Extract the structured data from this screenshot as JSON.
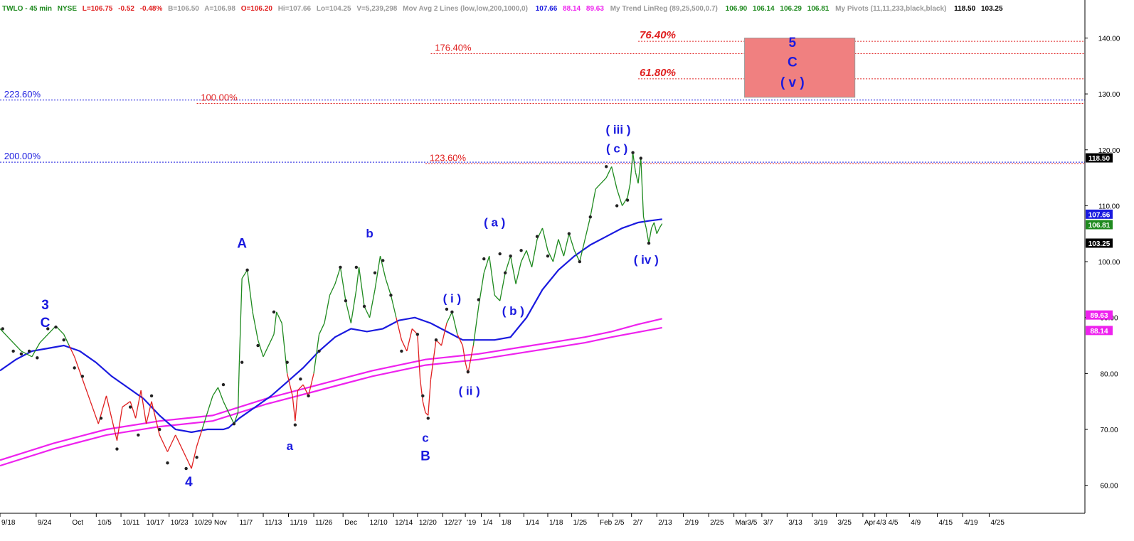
{
  "header": {
    "symbol": "TWLO - 45 min",
    "exchange": "NYSE",
    "last": "L=106.75",
    "chg": "-0.52",
    "chg_pct": "-0.48%",
    "bid": "B=106.50",
    "ask": "A=106.98",
    "open": "O=106.20",
    "hi": "Hi=107.66",
    "lo": "Lo=104.25",
    "vol": "V=5,239,298",
    "ma_label": "Mov Avg 2 Lines (low,low,200,1000,0)",
    "ma_v1": "107.66",
    "ma_v2": "88.14",
    "ma_v3": "89.63",
    "trend_label": "My  Trend  LinReg (89,25,500,0.7)",
    "trend_v1": "106.90",
    "trend_v2": "106.14",
    "trend_v3": "106.29",
    "trend_v4": "106.81",
    "pivots_label": "My  Pivots (11,11,233,black,black)",
    "pivots_v1": "118.50",
    "pivots_v2": "103.25"
  },
  "colors": {
    "up": "#1f8a1f",
    "down": "#e02020",
    "ma_blue": "#1a1adf",
    "ma_magenta": "#ee22ee",
    "fib_red": "#e02020",
    "fib_blue": "#1a1adf",
    "target_box": "#f08080",
    "pivot_dot": "#222222"
  },
  "chart_data": {
    "type": "line",
    "y_axis": {
      "min": 55,
      "max": 144,
      "ticks": [
        60,
        70,
        80,
        90,
        100,
        110,
        120,
        130,
        140
      ],
      "tick_labels": [
        "60.00",
        "70.00",
        "80.00",
        "90.00",
        "100.00",
        "110.00",
        "120.00",
        "130.00",
        "140.00"
      ]
    },
    "x_axis": {
      "tick_labels": [
        "9/18",
        "9/24",
        "Oct",
        "10/5",
        "10/11",
        "10/17",
        "10/23",
        "10/29",
        "Nov",
        "11/7",
        "11/13",
        "11/19",
        "11/26",
        "Dec",
        "12/10",
        "12/14",
        "12/20",
        "12/27",
        "'19",
        "1/4",
        "1/8",
        "1/14",
        "1/18",
        "1/25",
        "Feb",
        "2/5",
        "2/7",
        "2/13",
        "2/19",
        "2/25",
        "Mar",
        "3/5",
        "3/7",
        "3/13",
        "3/19",
        "3/25",
        "Apr",
        "4/3",
        "4/5",
        "4/9",
        "4/15",
        "4/19",
        "4/25"
      ],
      "tick_idx": [
        0,
        13.6,
        26.6,
        36.2,
        45.5,
        54.5,
        63.6,
        72.5,
        80,
        89.5,
        99,
        108.5,
        118,
        129,
        138.5,
        148,
        157,
        166.5,
        175,
        181,
        188,
        197,
        206,
        215,
        225,
        230.5,
        237.5,
        247,
        257,
        266.5,
        276,
        280.5,
        286.5,
        296,
        305.5,
        314.5,
        324.5,
        329,
        333.5,
        342,
        352.5,
        362,
        372
      ],
      "idx_max": 408
    },
    "price": [
      [
        0,
        88
      ],
      [
        4,
        86
      ],
      [
        8,
        84
      ],
      [
        12,
        83
      ],
      [
        15,
        85.5
      ],
      [
        18,
        87
      ],
      [
        21,
        88.5
      ],
      [
        24,
        87
      ],
      [
        26,
        85
      ],
      [
        28,
        83
      ],
      [
        31,
        79
      ],
      [
        34,
        75
      ],
      [
        37,
        71
      ],
      [
        40,
        76
      ],
      [
        42,
        72
      ],
      [
        44,
        68
      ],
      [
        46,
        74
      ],
      [
        49,
        75
      ],
      [
        51,
        72
      ],
      [
        53,
        77
      ],
      [
        55,
        71
      ],
      [
        57,
        75
      ],
      [
        60,
        69
      ],
      [
        63,
        66
      ],
      [
        66,
        69
      ],
      [
        70,
        65
      ],
      [
        72,
        63
      ],
      [
        74,
        67
      ],
      [
        76,
        70
      ],
      [
        78,
        73
      ],
      [
        80,
        76
      ],
      [
        82,
        77.5
      ],
      [
        84,
        75
      ],
      [
        86,
        73
      ],
      [
        88,
        71
      ],
      [
        89.5,
        73
      ],
      [
        90,
        82
      ],
      [
        91,
        97
      ],
      [
        93,
        98.5
      ],
      [
        95,
        91
      ],
      [
        97,
        86
      ],
      [
        99,
        83
      ],
      [
        101,
        85
      ],
      [
        103,
        87
      ],
      [
        104,
        91
      ],
      [
        106,
        89
      ],
      [
        108,
        80
      ],
      [
        110,
        76
      ],
      [
        111,
        71.5
      ],
      [
        112,
        77
      ],
      [
        114,
        78
      ],
      [
        116,
        76
      ],
      [
        118,
        80
      ],
      [
        120,
        87
      ],
      [
        122,
        89
      ],
      [
        124,
        94
      ],
      [
        126,
        96
      ],
      [
        128,
        99
      ],
      [
        130,
        93
      ],
      [
        132,
        89
      ],
      [
        134,
        95
      ],
      [
        135,
        99
      ],
      [
        137,
        92
      ],
      [
        139,
        90
      ],
      [
        141,
        95
      ],
      [
        143,
        101
      ],
      [
        145,
        97
      ],
      [
        147,
        94
      ],
      [
        149,
        90
      ],
      [
        151,
        86
      ],
      [
        153,
        84
      ],
      [
        155,
        88
      ],
      [
        157,
        87
      ],
      [
        158,
        79
      ],
      [
        159,
        75
      ],
      [
        160,
        73
      ],
      [
        161,
        72.5
      ],
      [
        162,
        79
      ],
      [
        164,
        86
      ],
      [
        166,
        85
      ],
      [
        168,
        89
      ],
      [
        170,
        91
      ],
      [
        172,
        87
      ],
      [
        174,
        85
      ],
      [
        175,
        82
      ],
      [
        176,
        80
      ],
      [
        178,
        85
      ],
      [
        180,
        92
      ],
      [
        182,
        98
      ],
      [
        184,
        101
      ],
      [
        186,
        94
      ],
      [
        188,
        93
      ],
      [
        190,
        98
      ],
      [
        192,
        101
      ],
      [
        194,
        96
      ],
      [
        196,
        100
      ],
      [
        198,
        102
      ],
      [
        200,
        99
      ],
      [
        202,
        104
      ],
      [
        204,
        106
      ],
      [
        206,
        102
      ],
      [
        208,
        100
      ],
      [
        210,
        104
      ],
      [
        212,
        101
      ],
      [
        214,
        105
      ],
      [
        216,
        102
      ],
      [
        218,
        100
      ],
      [
        220,
        104
      ],
      [
        222,
        108
      ],
      [
        224,
        113
      ],
      [
        226,
        114
      ],
      [
        228,
        115
      ],
      [
        230,
        117
      ],
      [
        232,
        113
      ],
      [
        234,
        110
      ],
      [
        236,
        111.5
      ],
      [
        237,
        114
      ],
      [
        238,
        119.5
      ],
      [
        239,
        116
      ],
      [
        240,
        114
      ],
      [
        241,
        118.5
      ],
      [
        242,
        108
      ],
      [
        243,
        106
      ],
      [
        244,
        103.3
      ],
      [
        245,
        106
      ],
      [
        246,
        107
      ],
      [
        247,
        105
      ],
      [
        248,
        106
      ],
      [
        249,
        106.8
      ]
    ],
    "ma_blue": [
      [
        0,
        80.5
      ],
      [
        6,
        82.5
      ],
      [
        12,
        84
      ],
      [
        18,
        84.5
      ],
      [
        24,
        85
      ],
      [
        30,
        84
      ],
      [
        36,
        82
      ],
      [
        42,
        79.5
      ],
      [
        48,
        77.5
      ],
      [
        54,
        75.5
      ],
      [
        60,
        72.5
      ],
      [
        66,
        70
      ],
      [
        72,
        69.5
      ],
      [
        78,
        70
      ],
      [
        84,
        70
      ],
      [
        86,
        70.3
      ],
      [
        90,
        72
      ],
      [
        96,
        74
      ],
      [
        102,
        76
      ],
      [
        108,
        78.5
      ],
      [
        114,
        81
      ],
      [
        120,
        84
      ],
      [
        126,
        86.5
      ],
      [
        132,
        88
      ],
      [
        138,
        87.5
      ],
      [
        144,
        88
      ],
      [
        150,
        89.5
      ],
      [
        156,
        90
      ],
      [
        162,
        89
      ],
      [
        168,
        87.5
      ],
      [
        174,
        86
      ],
      [
        180,
        86
      ],
      [
        186,
        86
      ],
      [
        192,
        86.5
      ],
      [
        198,
        90
      ],
      [
        204,
        95
      ],
      [
        210,
        98.5
      ],
      [
        216,
        101
      ],
      [
        222,
        103
      ],
      [
        228,
        104.5
      ],
      [
        234,
        106
      ],
      [
        240,
        107
      ],
      [
        244,
        107.3
      ],
      [
        249,
        107.6
      ]
    ],
    "ma_magenta": [
      [
        0,
        64.5
      ],
      [
        20,
        67.5
      ],
      [
        40,
        70
      ],
      [
        60,
        71.5
      ],
      [
        80,
        72.5
      ],
      [
        100,
        75.5
      ],
      [
        120,
        78
      ],
      [
        140,
        80.5
      ],
      [
        150,
        81.5
      ],
      [
        160,
        82.5
      ],
      [
        180,
        83.5
      ],
      [
        200,
        85
      ],
      [
        220,
        86.5
      ],
      [
        230,
        87.5
      ],
      [
        240,
        88.8
      ],
      [
        249,
        89.8
      ]
    ],
    "ma_magenta_2": [
      [
        0,
        63.5
      ],
      [
        20,
        66.5
      ],
      [
        40,
        69
      ],
      [
        60,
        70.5
      ],
      [
        80,
        71.5
      ],
      [
        100,
        74.5
      ],
      [
        120,
        77
      ],
      [
        140,
        79.5
      ],
      [
        150,
        80.5
      ],
      [
        160,
        81.5
      ],
      [
        180,
        82.5
      ],
      [
        200,
        84
      ],
      [
        220,
        85.5
      ],
      [
        230,
        86.5
      ],
      [
        240,
        87.4
      ],
      [
        249,
        88.2
      ]
    ],
    "pivots": [
      [
        1,
        88
      ],
      [
        5,
        84
      ],
      [
        8,
        83.5
      ],
      [
        11,
        84
      ],
      [
        14,
        82.8
      ],
      [
        18,
        88
      ],
      [
        21,
        88.3
      ],
      [
        24,
        86
      ],
      [
        28,
        81
      ],
      [
        31,
        79.5
      ],
      [
        38,
        72
      ],
      [
        44,
        66.5
      ],
      [
        49,
        74
      ],
      [
        52,
        69
      ],
      [
        57,
        76
      ],
      [
        60,
        70
      ],
      [
        63,
        64
      ],
      [
        70,
        63
      ],
      [
        74,
        65
      ],
      [
        84,
        78
      ],
      [
        88,
        71
      ],
      [
        91,
        82
      ],
      [
        93,
        98.5
      ],
      [
        97,
        85
      ],
      [
        103,
        91
      ],
      [
        108,
        82
      ],
      [
        111,
        70.8
      ],
      [
        113,
        79
      ],
      [
        116,
        76
      ],
      [
        120,
        84
      ],
      [
        128,
        99
      ],
      [
        130,
        93
      ],
      [
        134,
        99
      ],
      [
        137,
        92
      ],
      [
        141,
        98
      ],
      [
        144,
        100.2
      ],
      [
        147,
        94
      ],
      [
        151,
        84
      ],
      [
        157,
        87
      ],
      [
        159,
        76
      ],
      [
        161,
        72
      ],
      [
        164,
        86
      ],
      [
        168,
        91.5
      ],
      [
        170,
        91
      ],
      [
        176,
        80.3
      ],
      [
        180,
        93.2
      ],
      [
        182,
        100.5
      ],
      [
        188,
        101.4
      ],
      [
        190,
        98
      ],
      [
        192,
        101
      ],
      [
        196,
        102
      ],
      [
        202,
        104.5
      ],
      [
        206,
        101
      ],
      [
        214,
        105
      ],
      [
        218,
        100
      ],
      [
        222,
        108
      ],
      [
        228,
        117
      ],
      [
        232,
        110
      ],
      [
        236,
        111
      ],
      [
        238,
        119.5
      ],
      [
        241,
        118.5
      ],
      [
        244,
        103.3
      ]
    ],
    "fib_lines": [
      {
        "label": "76.40%",
        "price": 139.4,
        "x_start": 240,
        "style": "red-bold",
        "label_x": 240
      },
      {
        "label": "176.40%",
        "price": 137.2,
        "x_start": 162,
        "style": "red",
        "label_x": 163
      },
      {
        "label": "61.80%",
        "price": 132.7,
        "x_start": 240,
        "style": "red-bold",
        "label_x": 240
      },
      {
        "label": "223.60%",
        "price": 128.9,
        "x_start": 0,
        "style": "blue",
        "label_x": 1
      },
      {
        "label": "100.00%",
        "price": 128.3,
        "x_start": 74,
        "style": "red",
        "label_x": 75
      },
      {
        "label": "200.00%",
        "price": 117.8,
        "x_start": 0,
        "style": "blue",
        "label_x": 1
      },
      {
        "label": "123.60%",
        "price": 117.5,
        "x_start": 160,
        "style": "red",
        "label_x": 161
      }
    ],
    "target_box": {
      "x1": 280,
      "x2": 321.5,
      "price_top": 140,
      "price_bottom": 129.4
    },
    "wave_labels": [
      {
        "text": "3",
        "idx": 17,
        "price": 91.5,
        "size": "lg"
      },
      {
        "text": "C",
        "idx": 17,
        "price": 88.3,
        "size": "lg"
      },
      {
        "text": "4",
        "idx": 71,
        "price": 59.8,
        "size": "lg"
      },
      {
        "text": "A",
        "idx": 91,
        "price": 102.5,
        "size": "lg"
      },
      {
        "text": "a",
        "idx": 109,
        "price": 66.3,
        "size": "sm"
      },
      {
        "text": "b",
        "idx": 139,
        "price": 104.3,
        "size": "sm"
      },
      {
        "text": "c",
        "idx": 160,
        "price": 67.8,
        "size": "sm"
      },
      {
        "text": "B",
        "idx": 160,
        "price": 64.5,
        "size": "lg"
      },
      {
        "text": "( i )",
        "idx": 170,
        "price": 92.7,
        "size": "sm"
      },
      {
        "text": "( ii )",
        "idx": 176.5,
        "price": 76.2,
        "size": "sm"
      },
      {
        "text": "( a )",
        "idx": 186,
        "price": 106.3,
        "size": "sm"
      },
      {
        "text": "( b )",
        "idx": 193,
        "price": 90.5,
        "size": "sm"
      },
      {
        "text": "( iii )",
        "idx": 232.5,
        "price": 122.9,
        "size": "sm"
      },
      {
        "text": "( c )",
        "idx": 232,
        "price": 119.5,
        "size": "sm"
      },
      {
        "text": "( iv )",
        "idx": 243,
        "price": 99.6,
        "size": "sm"
      },
      {
        "text": "5",
        "idx": 298,
        "price": 138.4,
        "size": "lg"
      },
      {
        "text": "C",
        "idx": 298,
        "price": 134.9,
        "size": "lg"
      },
      {
        "text": "( v )",
        "idx": 298,
        "price": 131.3,
        "size": "lg"
      }
    ],
    "price_tags": [
      {
        "text": "118.50",
        "price": 118.5,
        "bg": "#000000",
        "fg": "#ffffff"
      },
      {
        "text": "107.66",
        "price": 107.66,
        "bg": "#1a1adf",
        "fg": "#ffffff"
      },
      {
        "text": "106.81",
        "price": 106.81,
        "bg": "#1f8a1f",
        "fg": "#ffffff"
      },
      {
        "text": "103.25",
        "price": 103.25,
        "bg": "#000000",
        "fg": "#ffffff"
      },
      {
        "text": "89.63",
        "price": 89.63,
        "bg": "#ee22ee",
        "fg": "#ffffff"
      },
      {
        "text": "88.14",
        "price": 88.14,
        "bg": "#ee22ee",
        "fg": "#ffffff"
      }
    ]
  }
}
